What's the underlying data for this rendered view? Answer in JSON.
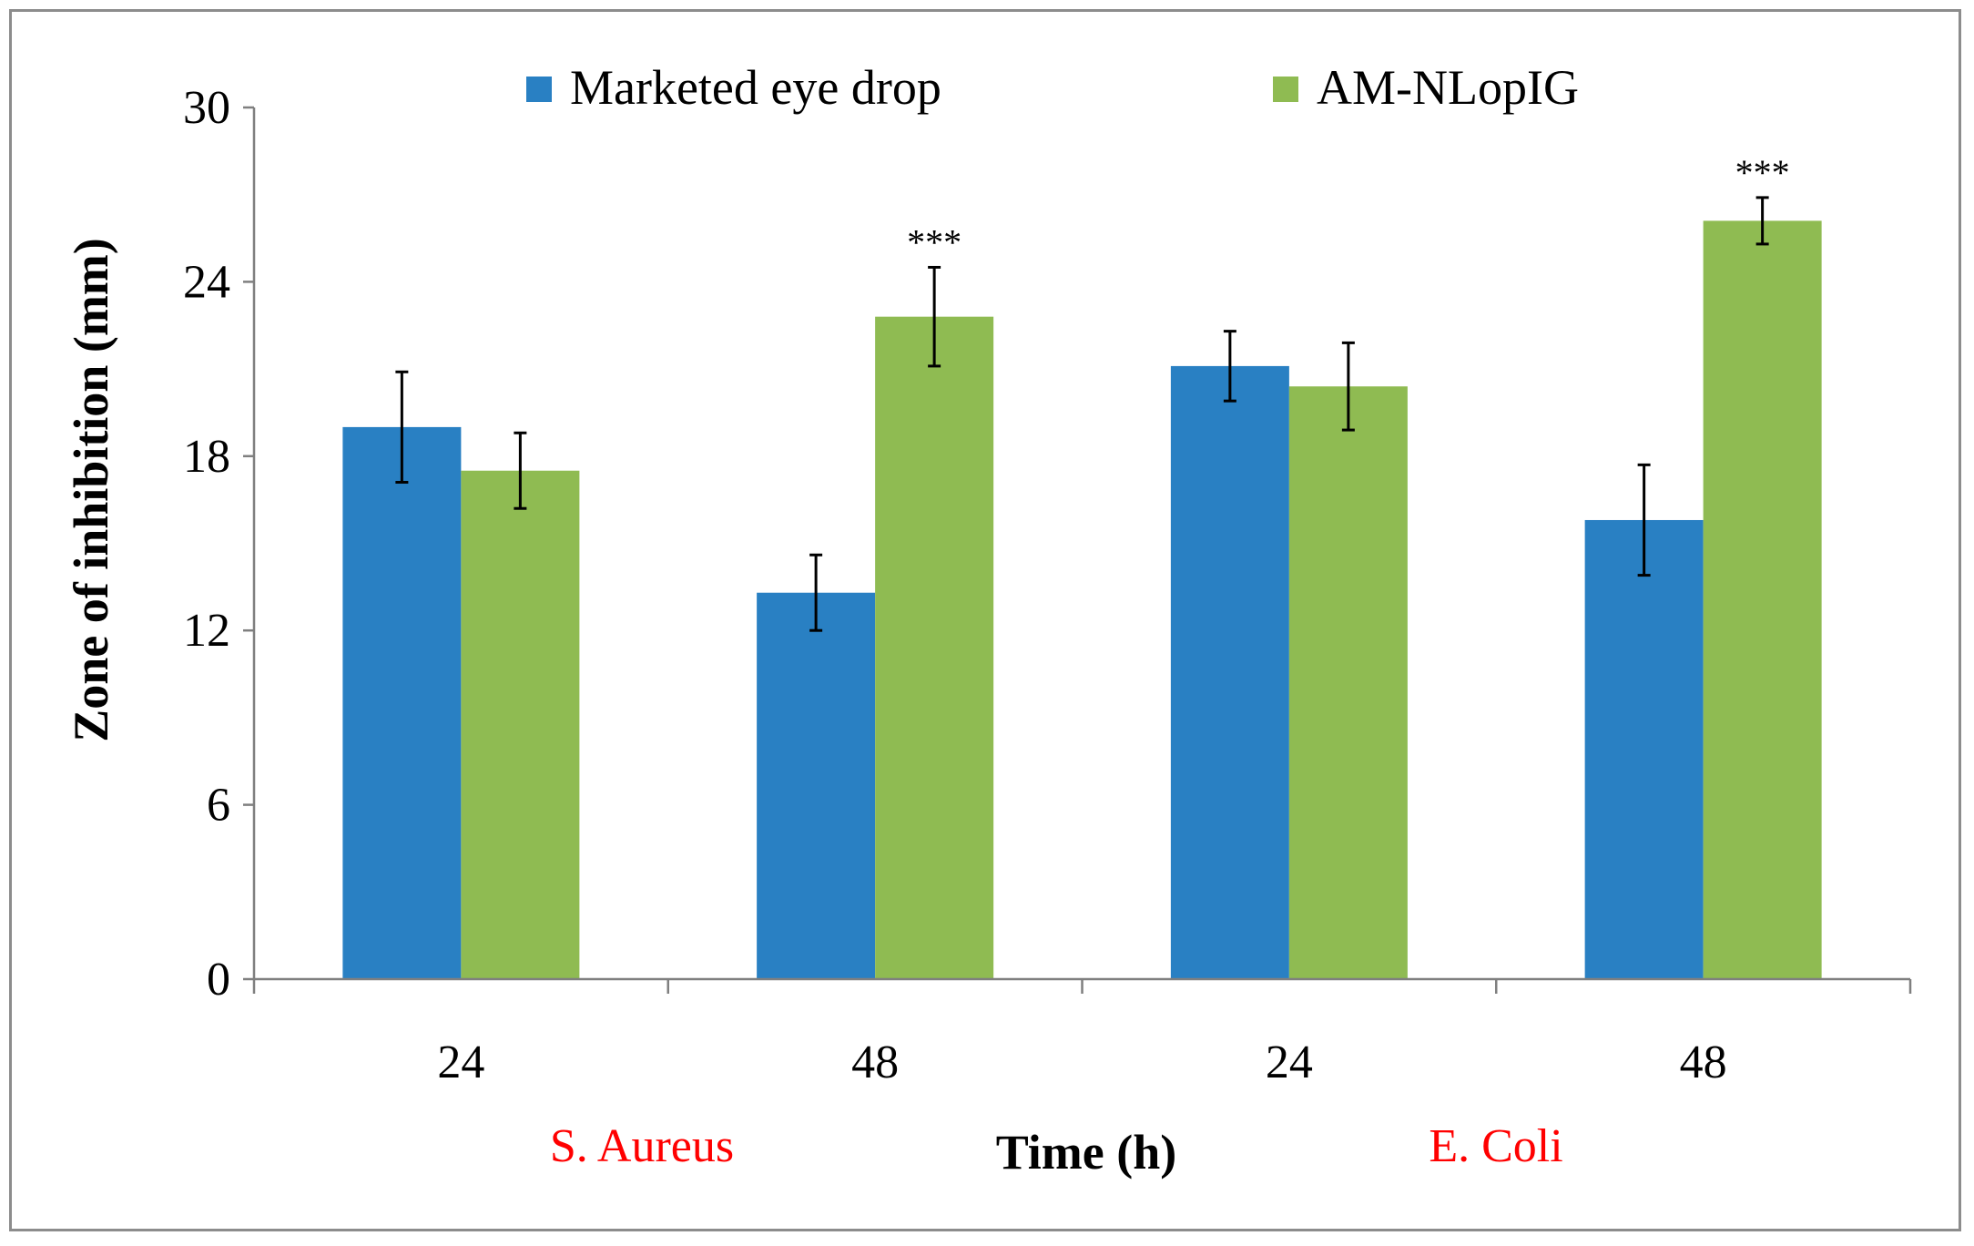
{
  "chart_data": {
    "type": "bar",
    "title": "",
    "xlabel": "Time (h)",
    "ylabel": "Zone of inhibition (mm)",
    "ylim": [
      0,
      30
    ],
    "yticks": [
      "0",
      "6",
      "12",
      "18",
      "24",
      "30"
    ],
    "categories": [
      "24",
      "48",
      "24",
      "48"
    ],
    "groups": [
      {
        "label": "S. Aureus",
        "categories": [
          "24",
          "48"
        ]
      },
      {
        "label": "E. Coli",
        "categories": [
          "24",
          "48"
        ]
      }
    ],
    "series": [
      {
        "name": "Marketed eye drop",
        "color": "#2980c3",
        "values": [
          19.0,
          13.3,
          21.1,
          15.8
        ],
        "errors": [
          1.9,
          1.3,
          1.2,
          1.9
        ]
      },
      {
        "name": "AM-NLopIG",
        "color": "#8fbb52",
        "values": [
          17.5,
          22.8,
          20.4,
          26.1
        ],
        "errors": [
          1.3,
          1.7,
          1.5,
          0.8
        ]
      }
    ],
    "annotations": [
      {
        "text": "***",
        "category_index": 1,
        "series_index": 1
      },
      {
        "text": "***",
        "category_index": 3,
        "series_index": 1
      }
    ],
    "legend_position": "top",
    "grid": false
  },
  "colors": {
    "group_label": "#ff0000",
    "axis": "#7f7f7f",
    "text": "#000000"
  }
}
